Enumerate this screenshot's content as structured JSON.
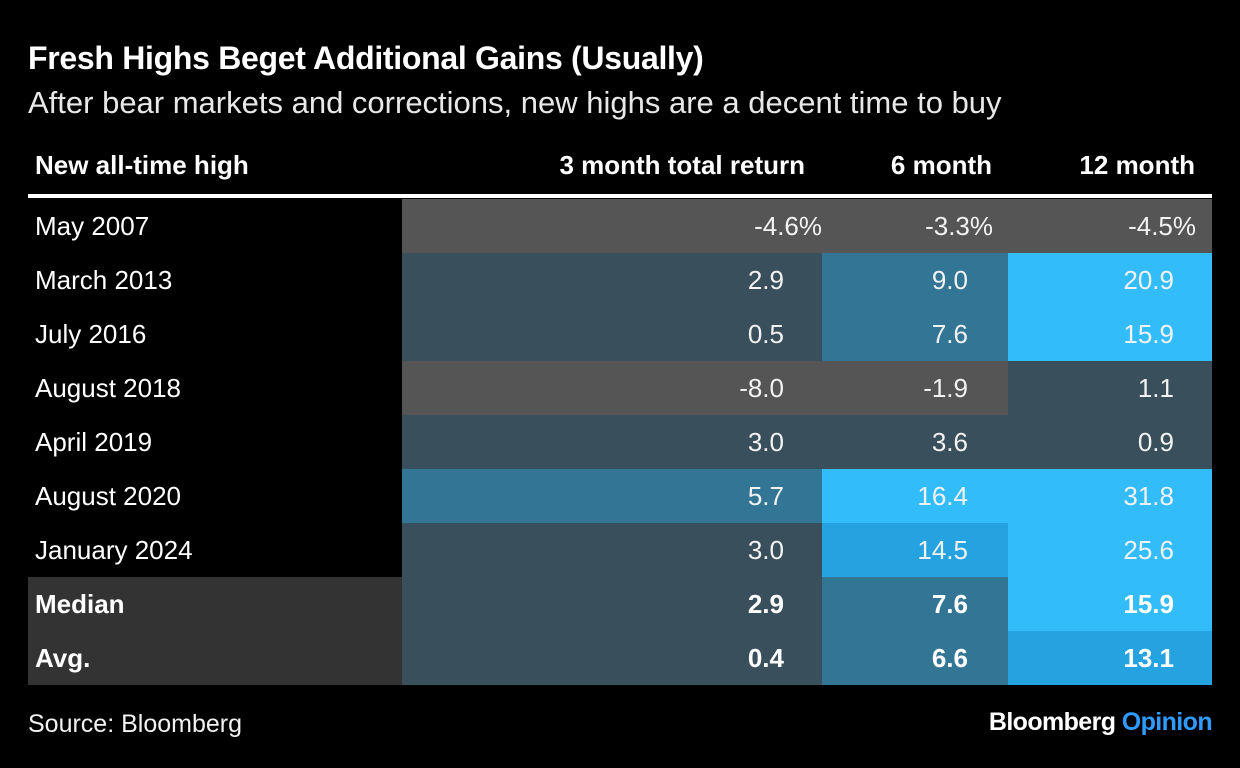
{
  "title": "Fresh Highs Beget Additional Gains (Usually)",
  "subtitle": "After bear markets and corrections, new highs are a decent time to buy",
  "source": "Source: Bloomberg",
  "brand": {
    "name": "Bloomberg",
    "section": "Opinion"
  },
  "colors": {
    "background": "#000000",
    "negative": "#555555",
    "low": "#3a4f5c",
    "mid": "#327594",
    "high_mid": "#24a3e0",
    "high": "#33bcfa",
    "label_dark": "#333333",
    "accent": "#2f9bff"
  },
  "chart_data": {
    "type": "table",
    "title": "Fresh Highs Beget Additional Gains (Usually)",
    "subtitle": "After bear markets and corrections, new highs are a decent time to buy",
    "columns": [
      "New all-time high",
      "3 month total return",
      "6 month",
      "12 month"
    ],
    "rows": [
      {
        "label": "May 2007",
        "values": [
          "-4.6%",
          "-3.3%",
          "-4.5%"
        ],
        "colors": [
          "negative",
          "negative",
          "negative"
        ],
        "bold": false,
        "full_width": true
      },
      {
        "label": "March 2013",
        "values": [
          "2.9",
          "9.0",
          "20.9"
        ],
        "colors": [
          "low",
          "mid",
          "high"
        ],
        "bold": false
      },
      {
        "label": "July 2016",
        "values": [
          "0.5",
          "7.6",
          "15.9"
        ],
        "colors": [
          "low",
          "mid",
          "high"
        ],
        "bold": false
      },
      {
        "label": "August 2018",
        "values": [
          "-8.0",
          "-1.9",
          "1.1"
        ],
        "colors": [
          "negative",
          "negative",
          "low"
        ],
        "bold": false
      },
      {
        "label": "April 2019",
        "values": [
          "3.0",
          "3.6",
          "0.9"
        ],
        "colors": [
          "low",
          "low",
          "low"
        ],
        "bold": false
      },
      {
        "label": "August 2020",
        "values": [
          "5.7",
          "16.4",
          "31.8"
        ],
        "colors": [
          "mid",
          "high",
          "high"
        ],
        "bold": false
      },
      {
        "label": "January 2024",
        "values": [
          "3.0",
          "14.5",
          "25.6"
        ],
        "colors": [
          "low",
          "high_mid",
          "high"
        ],
        "bold": false
      },
      {
        "label": "Median",
        "values": [
          "2.9",
          "7.6",
          "15.9"
        ],
        "colors": [
          "low",
          "mid",
          "high"
        ],
        "bold": true
      },
      {
        "label": "Avg.",
        "values": [
          "0.4",
          "6.6",
          "13.1"
        ],
        "colors": [
          "low",
          "mid",
          "high_mid"
        ],
        "bold": true
      }
    ]
  }
}
